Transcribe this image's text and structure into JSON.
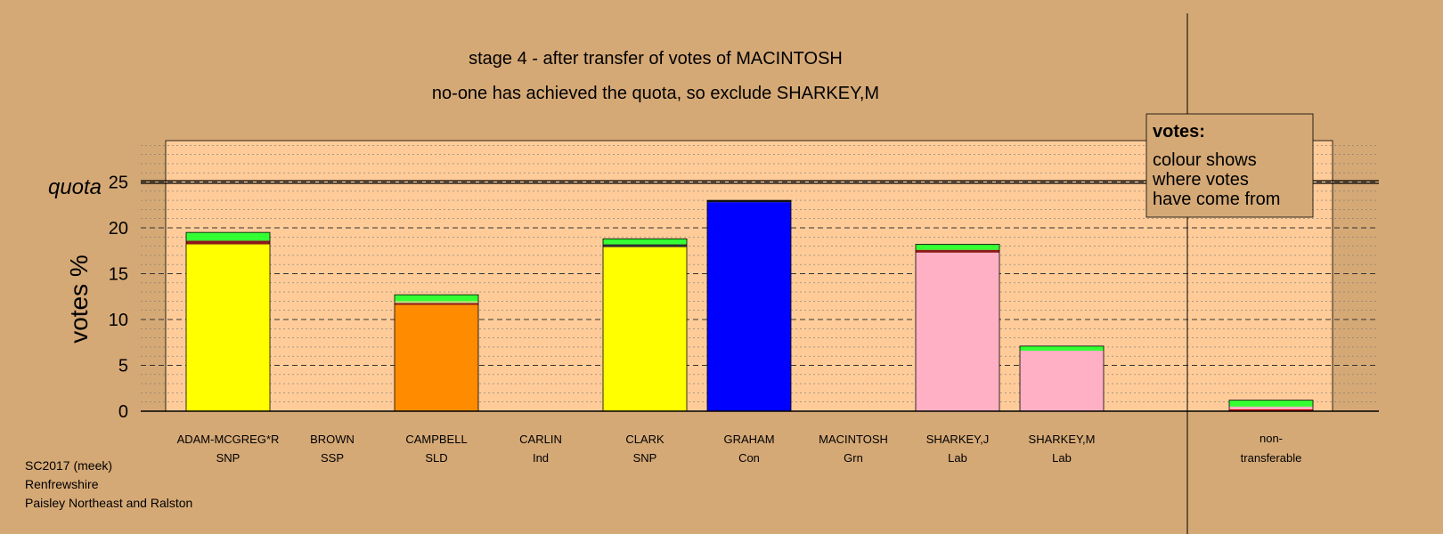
{
  "chart_data": {
    "type": "bar",
    "title": "stage 4 - after transfer of votes of MACINTOSH",
    "subtitle": "no-one has achieved the quota, so exclude SHARKEY,M",
    "ylabel": "votes %",
    "quota_label": "quota",
    "quota": 25,
    "ylim": [
      0,
      30
    ],
    "yticks": [
      0,
      5,
      10,
      15,
      20,
      25
    ],
    "categories": [
      {
        "name": "ADAM-MCGREG*R",
        "party": "SNP"
      },
      {
        "name": "BROWN",
        "party": "SSP"
      },
      {
        "name": "CAMPBELL",
        "party": "SLD"
      },
      {
        "name": "CARLIN",
        "party": "Ind"
      },
      {
        "name": "CLARK",
        "party": "SNP"
      },
      {
        "name": "GRAHAM",
        "party": "Con"
      },
      {
        "name": "MACINTOSH",
        "party": "Grn"
      },
      {
        "name": "SHARKEY,J",
        "party": "Lab"
      },
      {
        "name": "SHARKEY,M",
        "party": "Lab"
      }
    ],
    "non_transferable": {
      "label_line1": "non-",
      "label_line2": "transferable",
      "total": 1.2
    },
    "bars": [
      {
        "total": 19.5,
        "segments": [
          {
            "source": "first preferences",
            "color": "#FFFF00",
            "value": 18.2
          },
          {
            "source": "transfer",
            "color": "#8B1A1A",
            "value": 0.4
          },
          {
            "source": "MACINTOSH",
            "color": "#33FF33",
            "value": 0.9
          }
        ]
      },
      {
        "total": 0,
        "segments": []
      },
      {
        "total": 12.7,
        "segments": [
          {
            "source": "first preferences",
            "color": "#FF8C00",
            "value": 11.6
          },
          {
            "source": "transfer",
            "color": "#8B1A1A",
            "value": 0.2
          },
          {
            "source": "transfer",
            "color": "#C4E17F",
            "value": 0.2
          },
          {
            "source": "MACINTOSH",
            "color": "#33FF33",
            "value": 0.7
          }
        ]
      },
      {
        "total": 0,
        "segments": []
      },
      {
        "total": 18.8,
        "segments": [
          {
            "source": "first preferences",
            "color": "#FFFF00",
            "value": 17.9
          },
          {
            "source": "transfer",
            "color": "#2E2E2E",
            "value": 0.3
          },
          {
            "source": "MACINTOSH",
            "color": "#33FF33",
            "value": 0.6
          }
        ]
      },
      {
        "total": 23.0,
        "segments": [
          {
            "source": "first preferences",
            "color": "#0000FF",
            "value": 22.8
          },
          {
            "source": "transfer",
            "color": "#111111",
            "value": 0.2
          }
        ]
      },
      {
        "total": 0,
        "segments": []
      },
      {
        "total": 18.2,
        "segments": [
          {
            "source": "first preferences",
            "color": "#FFB0C4",
            "value": 17.3
          },
          {
            "source": "transfer",
            "color": "#8B1A1A",
            "value": 0.3
          },
          {
            "source": "MACINTOSH",
            "color": "#33FF33",
            "value": 0.6
          }
        ]
      },
      {
        "total": 7.1,
        "segments": [
          {
            "source": "first preferences",
            "color": "#FFB0C4",
            "value": 6.6
          },
          {
            "source": "MACINTOSH",
            "color": "#33FF33",
            "value": 0.5
          }
        ]
      }
    ],
    "nt_segments": [
      {
        "source": "transfer",
        "color": "#CC0000",
        "value": 0.2
      },
      {
        "source": "transfer",
        "color": "#FFB0C4",
        "value": 0.3
      },
      {
        "source": "MACINTOSH",
        "color": "#33FF33",
        "value": 0.7
      }
    ],
    "legend": {
      "title": "votes:",
      "lines": [
        "colour shows",
        "where votes",
        "have come from"
      ]
    }
  },
  "footer": {
    "line1": "SC2017 (meek)",
    "line2": "Renfrewshire",
    "line3": "Paisley Northeast and Ralston"
  }
}
